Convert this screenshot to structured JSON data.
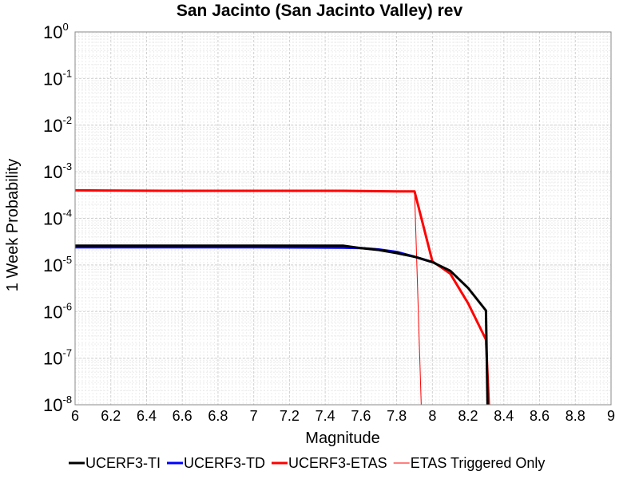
{
  "chart_data": {
    "type": "line",
    "title": "San Jacinto (San Jacinto Valley) rev",
    "xlabel": "Magnitude",
    "ylabel": "1 Week Probability",
    "xlim": [
      6,
      9
    ],
    "ylim": [
      1e-08,
      1
    ],
    "yscale": "log",
    "grid": true,
    "legend_position": "bottom",
    "x_ticks": [
      "6",
      "6.2",
      "6.4",
      "6.6",
      "6.8",
      "7",
      "7.2",
      "7.4",
      "7.6",
      "7.8",
      "8",
      "8.2",
      "8.4",
      "8.6",
      "8.8",
      "9"
    ],
    "y_ticks": [
      {
        "base": "10",
        "exp": "0",
        "value": 1
      },
      {
        "base": "10",
        "exp": "-1",
        "value": 0.1
      },
      {
        "base": "10",
        "exp": "-2",
        "value": 0.01
      },
      {
        "base": "10",
        "exp": "-3",
        "value": 0.001
      },
      {
        "base": "10",
        "exp": "-4",
        "value": 0.0001
      },
      {
        "base": "10",
        "exp": "-5",
        "value": 1e-05
      },
      {
        "base": "10",
        "exp": "-6",
        "value": 1e-06
      },
      {
        "base": "10",
        "exp": "-7",
        "value": 1e-07
      },
      {
        "base": "10",
        "exp": "-8",
        "value": 1e-08
      }
    ],
    "series": [
      {
        "name": "UCERF3-TI",
        "color": "#000000",
        "line_width": 3,
        "x": [
          6.0,
          6.5,
          7.0,
          7.5,
          7.6,
          7.7,
          7.8,
          7.9,
          8.0,
          8.1,
          8.2,
          8.3,
          8.31
        ],
        "y": [
          2.6e-05,
          2.6e-05,
          2.6e-05,
          2.6e-05,
          2.3e-05,
          2.1e-05,
          1.8e-05,
          1.5e-05,
          1.15e-05,
          7.5e-06,
          3.2e-06,
          1.05e-06,
          5e-09
        ]
      },
      {
        "name": "UCERF3-TD",
        "color": "#0000ff",
        "line_width": 3,
        "x": [
          6.0,
          6.5,
          7.0,
          7.5,
          7.6,
          7.7,
          7.8,
          7.9,
          8.0
        ],
        "y": [
          2.4e-05,
          2.4e-05,
          2.4e-05,
          2.35e-05,
          2.3e-05,
          2.15e-05,
          1.9e-05,
          1.5e-05,
          1.15e-05
        ]
      },
      {
        "name": "UCERF3-ETAS",
        "color": "#ff0000",
        "line_width": 3,
        "x": [
          6.0,
          6.5,
          7.0,
          7.5,
          7.8,
          7.9,
          8.0,
          8.1,
          8.2,
          8.3,
          8.32
        ],
        "y": [
          0.0004,
          0.00039,
          0.00039,
          0.00039,
          0.00038,
          0.00038,
          1.2e-05,
          6.5e-06,
          1.5e-06,
          2.5e-07,
          5e-09
        ]
      },
      {
        "name": "ETAS Triggered Only",
        "color": "#ff0000",
        "line_width": 1,
        "x": [
          6.0,
          7.9,
          7.94
        ],
        "y": [
          0.0004,
          0.00039,
          5e-09
        ]
      }
    ]
  }
}
